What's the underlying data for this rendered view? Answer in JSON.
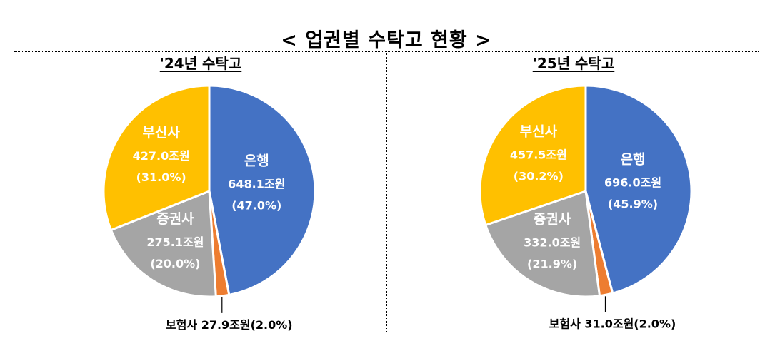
{
  "title": "< 업권별 수탁고 현황 >",
  "columns": [
    {
      "heading": "'24년 수탁고"
    },
    {
      "heading": "'25년 수탁고"
    }
  ],
  "colors": {
    "은행": "#4472C4",
    "보험사": "#ED7D31",
    "증권사": "#A5A5A5",
    "부신사": "#FFC000"
  },
  "chart_data": [
    {
      "type": "pie",
      "title": "'24년 수탁고",
      "categories": [
        "은행",
        "보험사",
        "증권사",
        "부신사"
      ],
      "values": [
        648.1,
        27.9,
        275.1,
        427.0
      ],
      "percentages": [
        47.0,
        2.0,
        20.0,
        31.0
      ],
      "unit": "조원",
      "labels": [
        {
          "name": "은행",
          "amount": "648.1조원",
          "pct": "(47.0%)"
        },
        {
          "name": "보험사",
          "amount": "27.9조원",
          "pct": "(2.0%)"
        },
        {
          "name": "증권사",
          "amount": "275.1조원",
          "pct": "(20.0%)"
        },
        {
          "name": "부신사",
          "amount": "427.0조원",
          "pct": "(31.0%)"
        }
      ],
      "external_label": "보험사 27.9조원(2.0%)"
    },
    {
      "type": "pie",
      "title": "'25년 수탁고",
      "categories": [
        "은행",
        "보험사",
        "증권사",
        "부신사"
      ],
      "values": [
        696.0,
        31.0,
        332.0,
        457.5
      ],
      "percentages": [
        45.9,
        2.0,
        21.9,
        30.2
      ],
      "unit": "조원",
      "labels": [
        {
          "name": "은행",
          "amount": "696.0조원",
          "pct": "(45.9%)"
        },
        {
          "name": "보험사",
          "amount": "31.0조원",
          "pct": "(2.0%)"
        },
        {
          "name": "증권사",
          "amount": "332.0조원",
          "pct": "(21.9%)"
        },
        {
          "name": "부신사",
          "amount": "457.5조원",
          "pct": "(30.2%)"
        }
      ],
      "external_label": "보험사 31.0조원(2.0%)"
    }
  ]
}
